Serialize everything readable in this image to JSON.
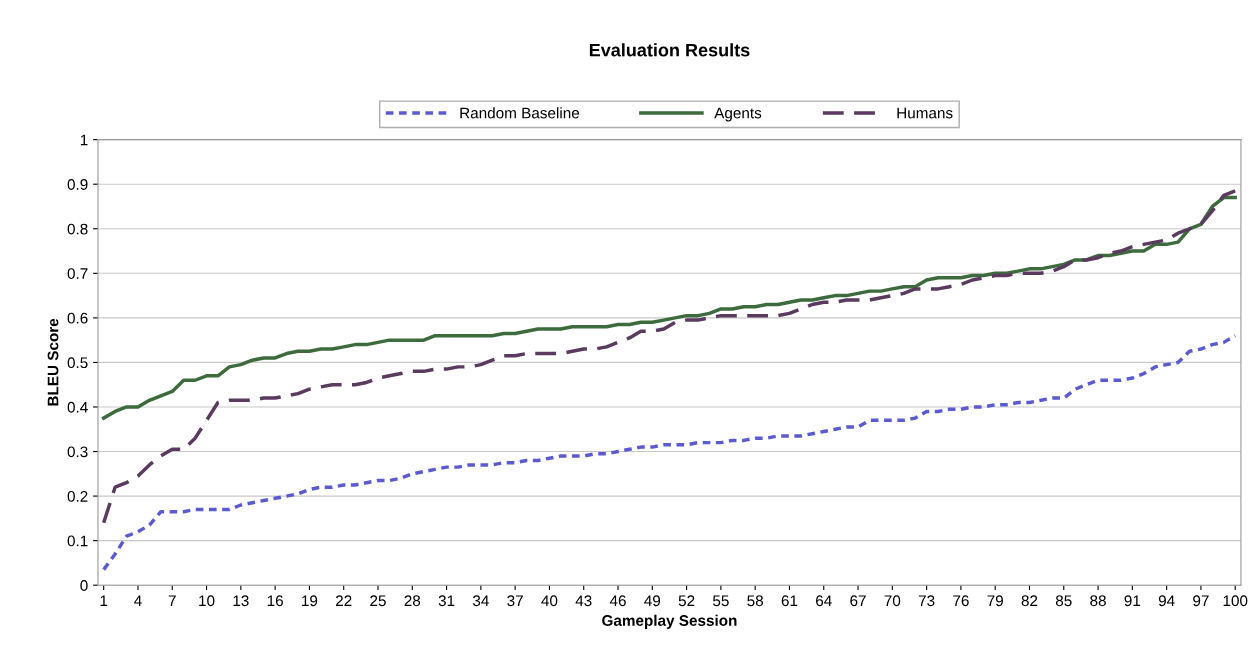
{
  "chart_data": {
    "type": "line",
    "title": "Evaluation Results",
    "xlabel": "Gameplay Session",
    "ylabel": "BLEU Score",
    "categories": [
      "1",
      null,
      null,
      "4",
      null,
      null,
      "7",
      null,
      null,
      "10",
      null,
      null,
      "13",
      null,
      null,
      "16",
      null,
      null,
      "19",
      null,
      null,
      "22",
      null,
      null,
      "25",
      null,
      null,
      "28",
      null,
      null,
      "31",
      null,
      null,
      "34",
      null,
      null,
      "37",
      null,
      null,
      "40",
      null,
      null,
      "43",
      null,
      null,
      "46",
      null,
      null,
      "49",
      null,
      null,
      "52",
      null,
      null,
      "55",
      null,
      null,
      "58",
      null,
      null,
      "61",
      null,
      null,
      "64",
      null,
      null,
      "67",
      null,
      null,
      "70",
      null,
      null,
      "73",
      null,
      null,
      "76",
      null,
      null,
      "79",
      null,
      null,
      "82",
      null,
      null,
      "85",
      null,
      null,
      "88",
      null,
      null,
      "91",
      null,
      null,
      "94",
      null,
      null,
      "97",
      null,
      null,
      "100"
    ],
    "series": [
      {
        "name": "Random Baseline",
        "color": "#5b5bd0",
        "line_style": "dotted",
        "values": [
          0.035,
          0.07,
          0.11,
          0.12,
          0.135,
          0.165,
          0.165,
          0.165,
          0.17,
          0.17,
          0.17,
          0.17,
          0.18,
          0.185,
          0.19,
          0.195,
          0.2,
          0.205,
          0.215,
          0.22,
          0.22,
          0.225,
          0.225,
          0.23,
          0.235,
          0.235,
          0.24,
          0.25,
          0.255,
          0.26,
          0.265,
          0.265,
          0.27,
          0.27,
          0.27,
          0.275,
          0.275,
          0.28,
          0.28,
          0.285,
          0.29,
          0.29,
          0.29,
          0.295,
          0.295,
          0.3,
          0.305,
          0.31,
          0.31,
          0.315,
          0.315,
          0.315,
          0.32,
          0.32,
          0.32,
          0.325,
          0.325,
          0.33,
          0.33,
          0.335,
          0.335,
          0.335,
          0.34,
          0.345,
          0.35,
          0.355,
          0.355,
          0.37,
          0.37,
          0.37,
          0.37,
          0.375,
          0.39,
          0.39,
          0.395,
          0.395,
          0.4,
          0.4,
          0.405,
          0.405,
          0.41,
          0.41,
          0.415,
          0.42,
          0.42,
          0.44,
          0.45,
          0.46,
          0.46,
          0.46,
          0.465,
          0.475,
          0.49,
          0.495,
          0.5,
          0.525,
          0.53,
          0.54,
          0.545,
          0.56
        ]
      },
      {
        "name": "Agents",
        "color": "#3d6b3d",
        "line_style": "solid",
        "values": [
          0.375,
          0.39,
          0.4,
          0.4,
          0.415,
          0.425,
          0.435,
          0.46,
          0.46,
          0.47,
          0.47,
          0.49,
          0.495,
          0.505,
          0.51,
          0.51,
          0.52,
          0.525,
          0.525,
          0.53,
          0.53,
          0.535,
          0.54,
          0.54,
          0.545,
          0.55,
          0.55,
          0.55,
          0.55,
          0.56,
          0.56,
          0.56,
          0.56,
          0.56,
          0.56,
          0.565,
          0.565,
          0.57,
          0.575,
          0.575,
          0.575,
          0.58,
          0.58,
          0.58,
          0.58,
          0.585,
          0.585,
          0.59,
          0.59,
          0.595,
          0.6,
          0.605,
          0.605,
          0.61,
          0.62,
          0.62,
          0.625,
          0.625,
          0.63,
          0.63,
          0.635,
          0.64,
          0.64,
          0.645,
          0.65,
          0.65,
          0.655,
          0.66,
          0.66,
          0.665,
          0.67,
          0.67,
          0.685,
          0.69,
          0.69,
          0.69,
          0.695,
          0.695,
          0.7,
          0.7,
          0.705,
          0.71,
          0.71,
          0.715,
          0.72,
          0.73,
          0.73,
          0.74,
          0.74,
          0.745,
          0.75,
          0.75,
          0.765,
          0.765,
          0.77,
          0.8,
          0.81,
          0.85,
          0.87,
          0.87
        ]
      },
      {
        "name": "Humans",
        "color": "#5a3a5e",
        "line_style": "dashed",
        "values": [
          0.14,
          0.22,
          0.23,
          0.245,
          0.27,
          0.29,
          0.305,
          0.305,
          0.33,
          0.37,
          0.41,
          0.415,
          0.415,
          0.415,
          0.42,
          0.42,
          0.425,
          0.43,
          0.44,
          0.445,
          0.45,
          0.45,
          0.45,
          0.455,
          0.465,
          0.47,
          0.475,
          0.48,
          0.48,
          0.485,
          0.485,
          0.49,
          0.49,
          0.495,
          0.505,
          0.515,
          0.515,
          0.52,
          0.52,
          0.52,
          0.52,
          0.525,
          0.53,
          0.53,
          0.535,
          0.545,
          0.555,
          0.57,
          0.57,
          0.575,
          0.59,
          0.595,
          0.595,
          0.6,
          0.605,
          0.605,
          0.605,
          0.605,
          0.605,
          0.605,
          0.61,
          0.62,
          0.63,
          0.635,
          0.635,
          0.64,
          0.64,
          0.64,
          0.645,
          0.65,
          0.655,
          0.665,
          0.665,
          0.665,
          0.67,
          0.675,
          0.685,
          0.69,
          0.695,
          0.695,
          0.7,
          0.7,
          0.7,
          0.705,
          0.715,
          0.73,
          0.73,
          0.735,
          0.745,
          0.75,
          0.76,
          0.765,
          0.77,
          0.775,
          0.79,
          0.8,
          0.81,
          0.84,
          0.875,
          0.885
        ]
      }
    ],
    "ylim": [
      0,
      1
    ],
    "yticks": [
      0,
      0.1,
      0.2,
      0.3,
      0.4,
      0.5,
      0.6,
      0.7,
      0.8,
      0.9,
      1
    ],
    "grid": "y",
    "legend": "top"
  }
}
